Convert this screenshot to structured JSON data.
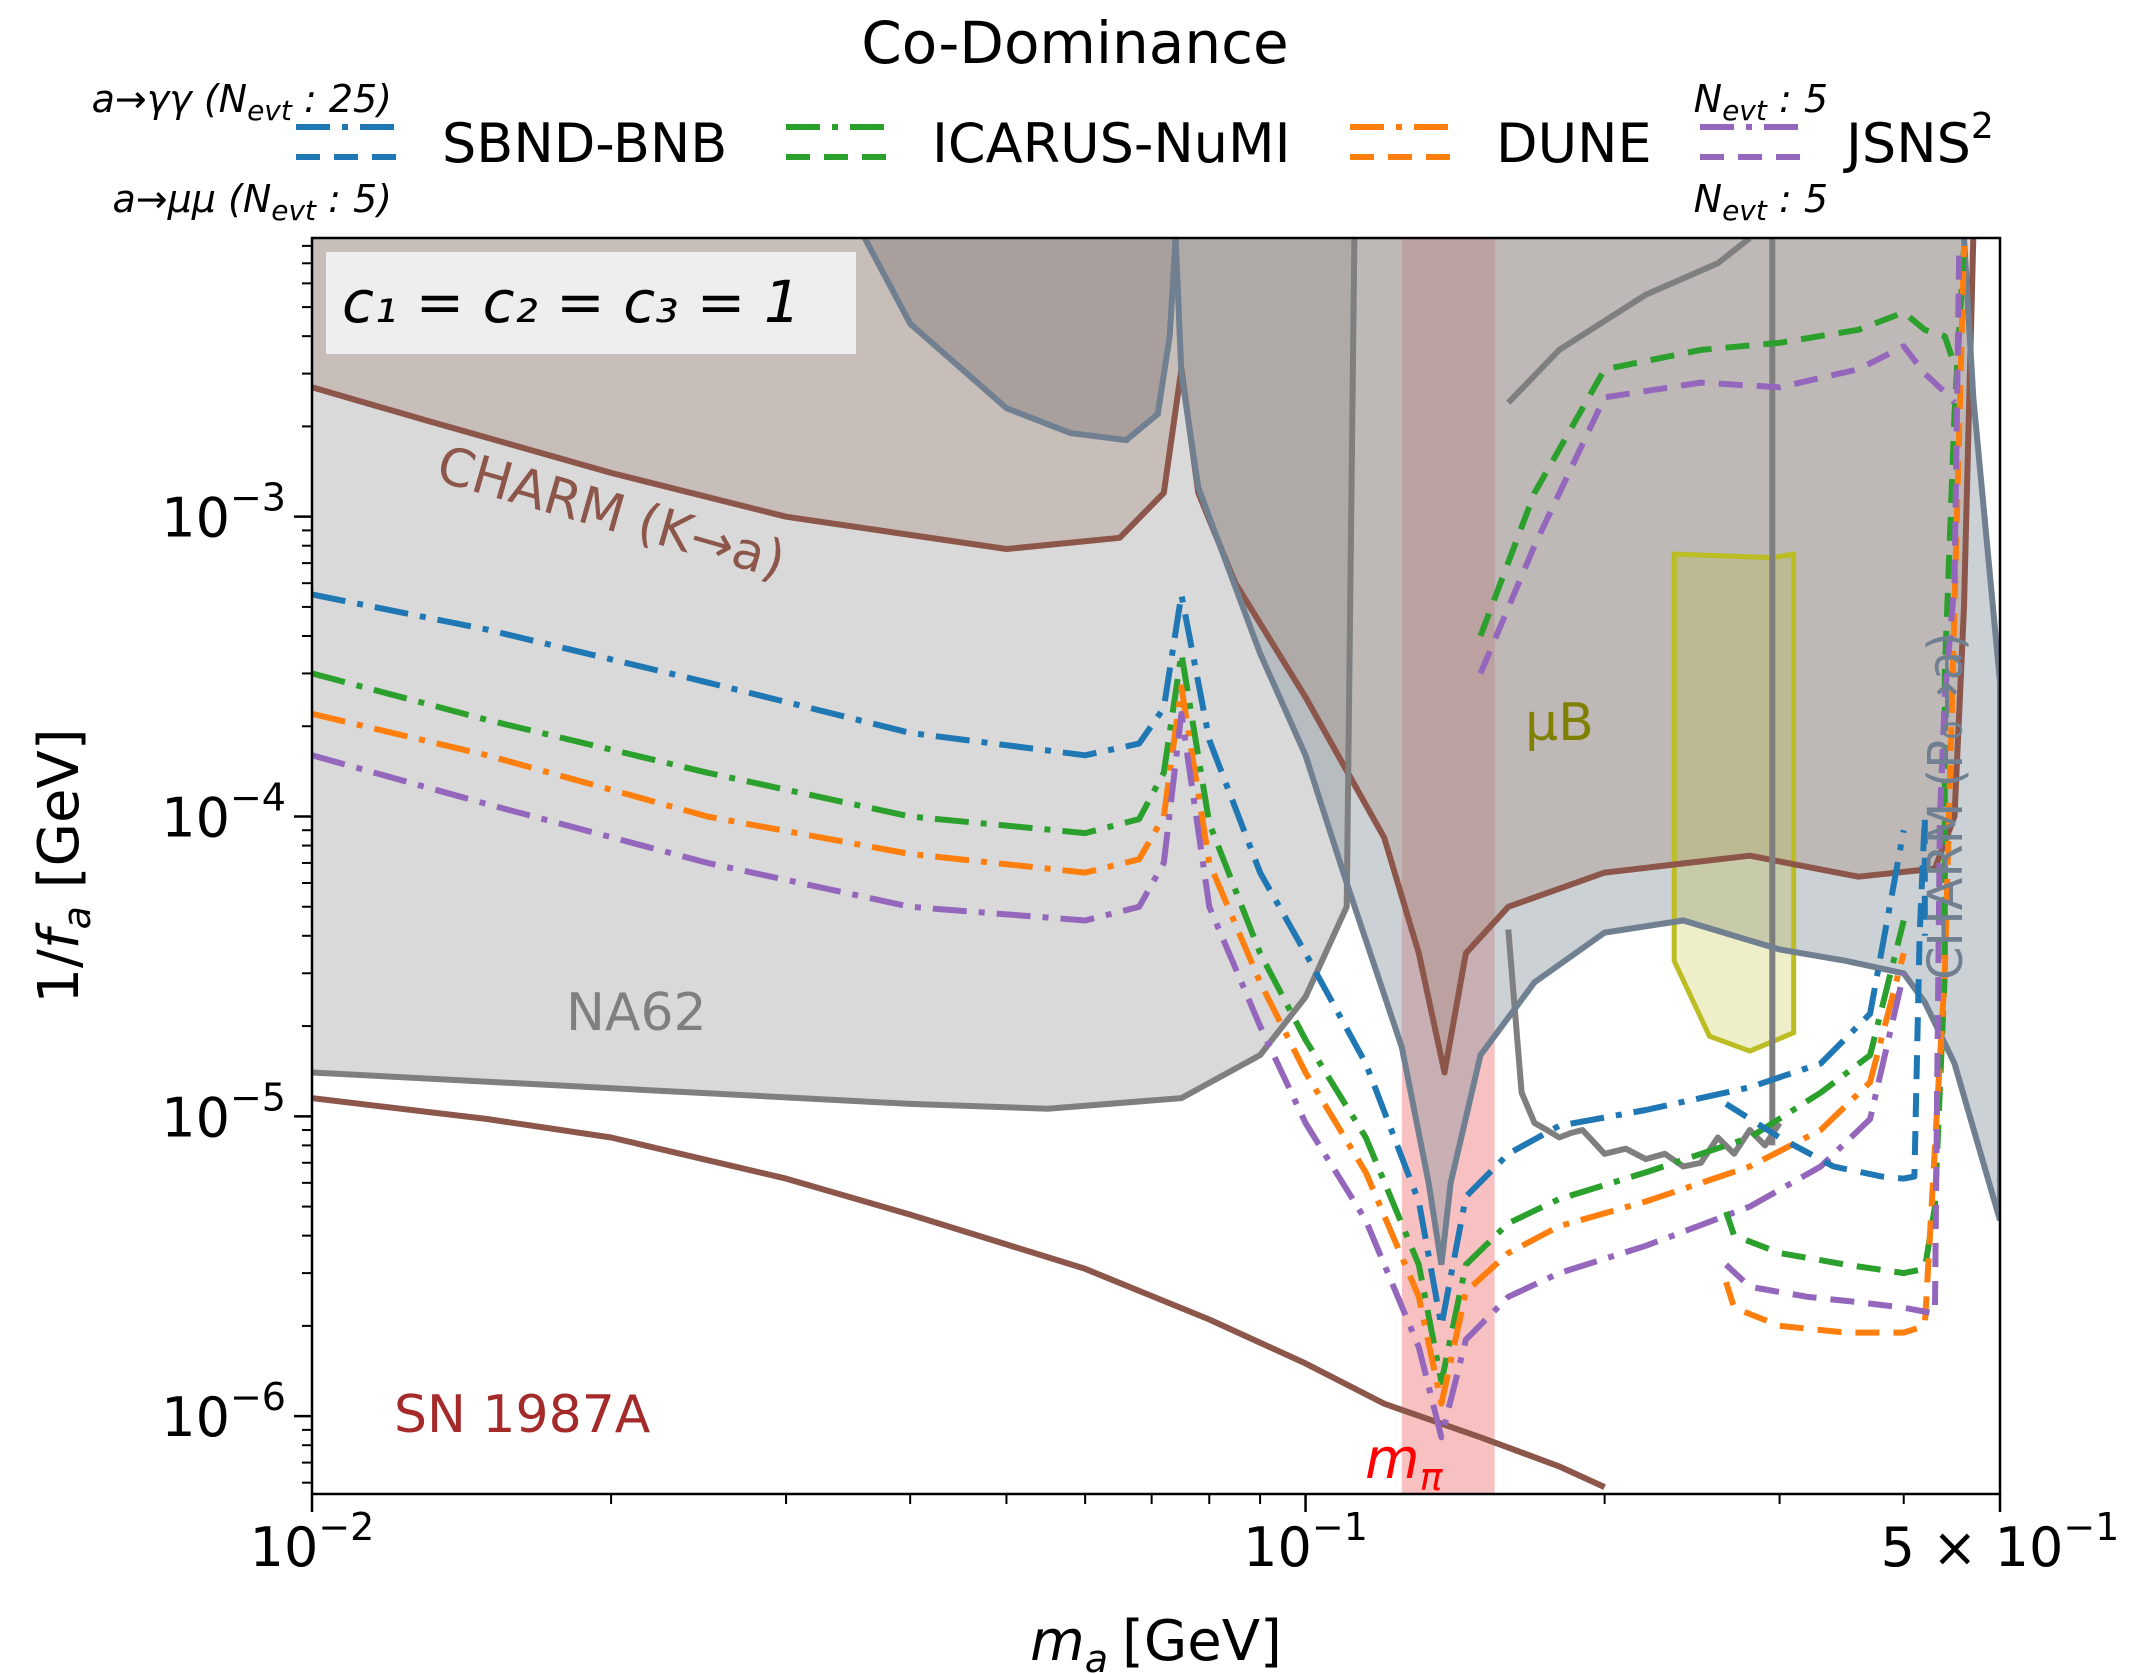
{
  "chart_data": {
    "type": "line",
    "title": "Co-Dominance",
    "xlabel_main": "m",
    "xlabel_sub": "a",
    "xlabel_unit": "[GeV]",
    "ylabel": "1/f_a [GeV]",
    "ylabel_parts": {
      "pre": "1/",
      "var": "f",
      "sub": "a",
      "post": " [GeV]"
    },
    "xscale": "log",
    "yscale": "log",
    "xlim": [
      0.01,
      0.5
    ],
    "ylim": [
      5.5e-07,
      0.0085
    ],
    "grid": false,
    "x_ticks": [
      {
        "v": 0.01,
        "base": "10",
        "exp": "−2"
      },
      {
        "v": 0.1,
        "base": "10",
        "exp": "−1"
      },
      {
        "v": 0.5,
        "base": "5 × 10",
        "exp": "−1"
      }
    ],
    "y_ticks": [
      {
        "v": 1e-06,
        "base": "10",
        "exp": "−6"
      },
      {
        "v": 1e-05,
        "base": "10",
        "exp": "−5"
      },
      {
        "v": 0.0001,
        "base": "10",
        "exp": "−4"
      },
      {
        "v": 0.001,
        "base": "10",
        "exp": "−3"
      }
    ],
    "legend": {
      "placement": "top",
      "row1_label": "a→γγ (N",
      "row1_sub": "evt",
      "row1_tail": " : 25)",
      "row2_label": "a→μμ (N",
      "row2_sub": "evt",
      "row2_tail": " : 5)",
      "jsns_top": "N",
      "jsns_top_sub": "evt",
      "jsns_top_tail": " : 5",
      "jsns_bottom": "N",
      "jsns_bottom_sub": "evt",
      "jsns_bottom_tail": " : 5",
      "entries": [
        {
          "label": "SBND-BNB",
          "color": "#1f77b4"
        },
        {
          "label": "ICARUS-NuMI",
          "color": "#2ca02c"
        },
        {
          "label": "DUNE",
          "color": "#ff7f0e"
        },
        {
          "label": "JSNS",
          "sup": "2",
          "color": "#9467bd"
        }
      ]
    },
    "annotations": {
      "couplings": "c₁ = c₂ = c₃ = 1",
      "charm_k": "CHARM (K→a)",
      "na62": "NA62",
      "mub": "μB",
      "charm_p0": "CHARM (P₀→a)",
      "sn": "SN 1987A",
      "mpi_main": "m",
      "mpi_sub": "π"
    },
    "colors": {
      "sbnd": "#1f77b4",
      "icarus": "#2ca02c",
      "dune": "#ff7f0e",
      "jsns": "#9467bd",
      "charm_k": "#8c564b",
      "sn": "#8c564b",
      "na62": "#7f7f7f",
      "mub": "#bcbd22",
      "slate": "#708090",
      "mpi_band": "#f4a6a6",
      "mpi_text": "#ff0000",
      "sn_text": "#a52a2a"
    },
    "mpi_band": [
      0.125,
      0.155
    ],
    "regions": {
      "charm_k": [
        [
          0.01,
          0.0027
        ],
        [
          0.013,
          0.0021
        ],
        [
          0.02,
          0.0014
        ],
        [
          0.03,
          0.001
        ],
        [
          0.05,
          0.00078
        ],
        [
          0.065,
          0.00085
        ],
        [
          0.072,
          0.0012
        ],
        [
          0.075,
          0.0031
        ],
        [
          0.078,
          0.0012
        ],
        [
          0.085,
          0.0006
        ],
        [
          0.1,
          0.00025
        ],
        [
          0.12,
          8.5e-05
        ],
        [
          0.13,
          3.5e-05
        ],
        [
          0.138,
          1.4e-05
        ],
        [
          0.145,
          3.5e-05
        ],
        [
          0.16,
          5e-05
        ],
        [
          0.2,
          6.5e-05
        ],
        [
          0.28,
          7.4e-05
        ],
        [
          0.36,
          6.3e-05
        ],
        [
          0.43,
          6.7e-05
        ],
        [
          0.45,
          0.0001
        ],
        [
          0.46,
          0.0005
        ],
        [
          0.47,
          0.0085
        ],
        [
          0.01,
          0.0085
        ]
      ],
      "na62": [
        [
          0.01,
          0.0085
        ],
        [
          0.01,
          1.4e-05
        ],
        [
          0.04,
          1.1e-05
        ],
        [
          0.055,
          1.06e-05
        ],
        [
          0.075,
          1.15e-05
        ],
        [
          0.09,
          1.6e-05
        ],
        [
          0.1,
          2.5e-05
        ],
        [
          0.11,
          5e-05
        ],
        [
          0.112,
          0.0085
        ]
      ],
      "slate_left": [
        [
          0.036,
          0.0085
        ],
        [
          0.04,
          0.0044
        ],
        [
          0.05,
          0.0023
        ],
        [
          0.058,
          0.0019
        ],
        [
          0.066,
          0.0018
        ],
        [
          0.071,
          0.0022
        ],
        [
          0.073,
          0.004
        ],
        [
          0.074,
          0.0085
        ]
      ],
      "slate_vee": [
        [
          0.074,
          0.0085
        ],
        [
          0.075,
          0.003
        ],
        [
          0.078,
          0.00125
        ],
        [
          0.09,
          0.00035
        ],
        [
          0.1,
          0.00016
        ],
        [
          0.11,
          6e-05
        ],
        [
          0.125,
          1.7e-05
        ],
        [
          0.133,
          6e-06
        ],
        [
          0.137,
          3.2e-06
        ],
        [
          0.14,
          6e-06
        ],
        [
          0.15,
          1.6e-05
        ],
        [
          0.17,
          2.8e-05
        ],
        [
          0.2,
          4.1e-05
        ],
        [
          0.24,
          4.5e-05
        ],
        [
          0.3,
          3.6e-05
        ],
        [
          0.35,
          3.3e-05
        ],
        [
          0.4,
          3e-05
        ],
        [
          0.42,
          2.4e-05
        ],
        [
          0.45,
          1.5e-05
        ],
        [
          0.5,
          4.5e-06
        ],
        [
          0.5,
          0.00028
        ],
        [
          0.47,
          0.0025
        ],
        [
          0.46,
          0.0085
        ]
      ],
      "mub_region": [
        [
          0.235,
          0.00075
        ],
        [
          0.295,
          0.00073
        ],
        [
          0.31,
          0.00075
        ],
        [
          0.31,
          1.9e-05
        ],
        [
          0.28,
          1.65e-05
        ],
        [
          0.255,
          1.85e-05
        ],
        [
          0.235,
          3.3e-05
        ]
      ]
    },
    "series": [
      {
        "name": "SBND-BNB",
        "color": "#1f77b4",
        "style": "dashdot",
        "x": [
          0.01,
          0.015,
          0.025,
          0.04,
          0.06,
          0.068,
          0.072,
          0.075,
          0.08,
          0.09,
          0.1,
          0.115,
          0.13,
          0.137,
          0.145,
          0.16,
          0.18,
          0.22,
          0.28,
          0.33,
          0.37,
          0.4
        ],
        "y": [
          0.00055,
          0.00042,
          0.00028,
          0.00019,
          0.00016,
          0.000175,
          0.00023,
          0.00055,
          0.00018,
          6.5e-05,
          3.5e-05,
          1.5e-05,
          5.2e-06,
          2e-06,
          5.4e-06,
          7.5e-06,
          9.3e-06,
          1.05e-05,
          1.25e-05,
          1.5e-05,
          2.2e-05,
          9e-05
        ]
      },
      {
        "name": "ICARUS-NuMI",
        "color": "#2ca02c",
        "style": "dashdot",
        "x": [
          0.01,
          0.015,
          0.025,
          0.04,
          0.06,
          0.068,
          0.072,
          0.075,
          0.08,
          0.09,
          0.1,
          0.115,
          0.13,
          0.137,
          0.145,
          0.16,
          0.18,
          0.22,
          0.28,
          0.33,
          0.37,
          0.4
        ],
        "y": [
          0.0003,
          0.00021,
          0.00014,
          0.0001,
          8.8e-05,
          9.8e-05,
          0.00014,
          0.00035,
          9.5e-05,
          3.5e-05,
          1.8e-05,
          8.5e-06,
          3.2e-06,
          1.3e-06,
          3.2e-06,
          4.4e-06,
          5.3e-06,
          6.5e-06,
          8.5e-06,
          1.2e-05,
          1.6e-05,
          4.5e-05
        ]
      },
      {
        "name": "DUNE",
        "color": "#ff7f0e",
        "style": "dashdot",
        "x": [
          0.01,
          0.015,
          0.025,
          0.04,
          0.06,
          0.068,
          0.072,
          0.075,
          0.08,
          0.09,
          0.1,
          0.115,
          0.13,
          0.137,
          0.145,
          0.16,
          0.18,
          0.22,
          0.28,
          0.33,
          0.37,
          0.4
        ],
        "y": [
          0.00022,
          0.00016,
          0.0001,
          7.5e-05,
          6.5e-05,
          7.2e-05,
          0.0001,
          0.00027,
          7e-05,
          2.8e-05,
          1.4e-05,
          6.5e-06,
          2.5e-06,
          1.1e-06,
          2.6e-06,
          3.5e-06,
          4.3e-06,
          5.2e-06,
          6.8e-06,
          9e-06,
          1.3e-05,
          3.5e-05
        ]
      },
      {
        "name": "JSNS2",
        "color": "#9467bd",
        "style": "dashdot",
        "x": [
          0.01,
          0.015,
          0.025,
          0.04,
          0.06,
          0.068,
          0.072,
          0.075,
          0.08,
          0.09,
          0.1,
          0.115,
          0.13,
          0.137,
          0.145,
          0.16,
          0.18,
          0.22,
          0.28,
          0.33,
          0.37,
          0.4
        ],
        "y": [
          0.00016,
          0.00011,
          7e-05,
          5e-05,
          4.5e-05,
          5e-05,
          7e-05,
          0.00022,
          5e-05,
          2e-05,
          9.5e-06,
          4.5e-06,
          1.7e-06,
          8.5e-07,
          1.8e-06,
          2.5e-06,
          3e-06,
          3.7e-06,
          5e-06,
          6.8e-06,
          9.8e-06,
          3e-05
        ]
      },
      {
        "name": "SBND-BNB",
        "color": "#1f77b4",
        "style": "dash",
        "x": [
          0.265,
          0.3,
          0.34,
          0.38,
          0.4,
          0.41,
          0.415,
          0.42,
          0.42
        ],
        "y": [
          1.1e-05,
          8.5e-06,
          6.8e-06,
          6.3e-06,
          6.2e-06,
          6.3e-06,
          4e-05,
          0.0001,
          4e-05
        ]
      },
      {
        "name": "ICARUS-NuMI",
        "color": "#2ca02c",
        "style": "dash",
        "x": [
          0.265,
          0.27,
          0.3,
          0.35,
          0.4,
          0.42,
          0.43,
          0.44,
          0.44,
          0.45,
          0.46
        ],
        "y": [
          4.8e-06,
          4e-06,
          3.5e-06,
          3.2e-06,
          3e-06,
          3.1e-06,
          5e-06,
          3e-05,
          0.0003,
          0.0022,
          0.008
        ]
      },
      {
        "name": "DUNE",
        "color": "#ff7f0e",
        "style": "dash",
        "x": [
          0.265,
          0.27,
          0.3,
          0.35,
          0.4,
          0.42,
          0.44,
          0.45,
          0.46
        ],
        "y": [
          2.8e-06,
          2.3e-06,
          2e-06,
          1.9e-06,
          1.9e-06,
          2e-06,
          3e-05,
          0.0005,
          0.008
        ]
      },
      {
        "name": "JSNS2",
        "color": "#9467bd",
        "style": "dash",
        "x": [
          0.265,
          0.28,
          0.32,
          0.36,
          0.4,
          0.43,
          0.435,
          0.44,
          0.45,
          0.455
        ],
        "y": [
          3.2e-06,
          2.7e-06,
          2.5e-06,
          2.4e-06,
          2.3e-06,
          2.2e-06,
          0.0001,
          0.00025,
          0.0006,
          0.008
        ]
      },
      {
        "name": "ICARUS-NuMI",
        "color": "#2ca02c",
        "style": "dash",
        "x": [
          0.15,
          0.17,
          0.2,
          0.25,
          0.3,
          0.36,
          0.4,
          0.42,
          0.44,
          0.45
        ],
        "y": [
          0.0004,
          0.0012,
          0.0031,
          0.0036,
          0.0038,
          0.0042,
          0.0048,
          0.0042,
          0.004,
          0.0032
        ]
      },
      {
        "name": "JSNS2",
        "color": "#9467bd",
        "style": "dash",
        "x": [
          0.15,
          0.17,
          0.2,
          0.25,
          0.3,
          0.36,
          0.4,
          0.42,
          0.44,
          0.45
        ],
        "y": [
          0.0003,
          0.0008,
          0.0025,
          0.0028,
          0.0027,
          0.0031,
          0.0037,
          0.003,
          0.0026,
          0.0024
        ]
      }
    ],
    "lines": [
      {
        "name": "CHARM-K-boundary",
        "color": "#8c564b",
        "x": [
          0.01,
          0.013,
          0.02,
          0.03,
          0.05,
          0.065,
          0.072,
          0.075,
          0.078,
          0.085,
          0.1,
          0.12,
          0.13,
          0.138,
          0.145,
          0.16,
          0.2,
          0.28,
          0.36,
          0.43,
          0.45,
          0.46,
          0.47
        ],
        "y": [
          0.0027,
          0.0021,
          0.0014,
          0.001,
          0.00078,
          0.00085,
          0.0012,
          0.0031,
          0.0012,
          0.0006,
          0.00025,
          8.5e-05,
          3.5e-05,
          1.4e-05,
          3.5e-05,
          5e-05,
          6.5e-05,
          7.4e-05,
          6.3e-05,
          6.7e-05,
          0.0001,
          0.0005,
          0.0085
        ]
      },
      {
        "name": "SN1987A-bound",
        "color": "#8c564b",
        "x": [
          0.01,
          0.015,
          0.02,
          0.03,
          0.04,
          0.06,
          0.08,
          0.1,
          0.12,
          0.15,
          0.18,
          0.2
        ],
        "y": [
          1.15e-05,
          9.8e-06,
          8.5e-06,
          6.2e-06,
          4.7e-06,
          3.1e-06,
          2.1e-06,
          1.5e-06,
          1.1e-06,
          8.5e-07,
          6.8e-07,
          5.8e-07
        ]
      },
      {
        "name": "NA62-boundary",
        "color": "#7f7f7f",
        "x": [
          0.01,
          0.04,
          0.055,
          0.075,
          0.09,
          0.1,
          0.11,
          0.112
        ],
        "y": [
          1.4e-05,
          1.1e-05,
          1.06e-05,
          1.15e-05,
          1.6e-05,
          2.5e-05,
          5e-05,
          0.0085
        ]
      },
      {
        "name": "gray-vertical-right",
        "color": "#7f7f7f",
        "x": [
          0.295,
          0.295
        ],
        "y": [
          0.0085,
          8e-06
        ]
      },
      {
        "name": "gray-wiggle",
        "color": "#7f7f7f",
        "x": [
          0.16,
          0.165,
          0.17,
          0.175,
          0.18,
          0.185,
          0.19,
          0.2,
          0.21,
          0.22,
          0.23,
          0.24,
          0.25,
          0.26,
          0.27,
          0.28,
          0.29,
          0.3
        ],
        "y": [
          4.2e-05,
          1.2e-05,
          9.5e-06,
          9e-06,
          8.5e-06,
          8.8e-06,
          9e-06,
          7.5e-06,
          7.8e-06,
          7.2e-06,
          7.5e-06,
          6.8e-06,
          7e-06,
          8.5e-06,
          7.5e-06,
          9e-06,
          8e-06,
          9.5e-06
        ]
      },
      {
        "name": "gray-upper-arc",
        "color": "#7f7f7f",
        "x": [
          0.16,
          0.18,
          0.22,
          0.26,
          0.28
        ],
        "y": [
          0.0024,
          0.0036,
          0.0055,
          0.007,
          0.0085
        ]
      }
    ]
  }
}
